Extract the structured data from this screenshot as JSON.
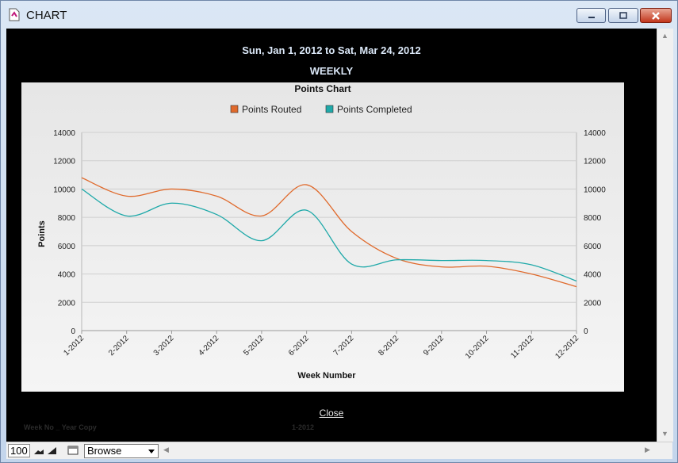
{
  "window": {
    "title": "CHART",
    "icon": "document-chart-icon"
  },
  "report": {
    "date_range": "Sun, Jan 1, 2012  to Sat, Mar 24, 2012",
    "period": "WEEKLY",
    "close_label": "Close",
    "ghost_left": "Week No _ Year Copy",
    "ghost_center": "1-2012"
  },
  "statusbar": {
    "zoom": "100",
    "mode": "Browse"
  },
  "chart_data": {
    "type": "line",
    "title": "Points Chart",
    "xlabel": "Week Number",
    "ylabel": "Points",
    "categories": [
      "1-2012",
      "2-2012",
      "3-2012",
      "4-2012",
      "5-2012",
      "6-2012",
      "7-2012",
      "8-2012",
      "9-2012",
      "10-2012",
      "11-2012",
      "12-2012"
    ],
    "ylim": [
      0,
      14000
    ],
    "yticks": [
      0,
      2000,
      4000,
      6000,
      8000,
      10000,
      12000,
      14000
    ],
    "secondary_axis": true,
    "grid": true,
    "legend_position": "top-center",
    "series": [
      {
        "name": "Points Routed",
        "color": "#e06a2c",
        "values": [
          10800,
          9500,
          10000,
          9500,
          8100,
          10300,
          7000,
          5100,
          4500,
          4550,
          4000,
          3100
        ]
      },
      {
        "name": "Points Completed",
        "color": "#1fa9a9",
        "values": [
          10000,
          8100,
          9000,
          8200,
          6350,
          8500,
          4700,
          5000,
          4950,
          4950,
          4650,
          3500
        ]
      }
    ]
  }
}
